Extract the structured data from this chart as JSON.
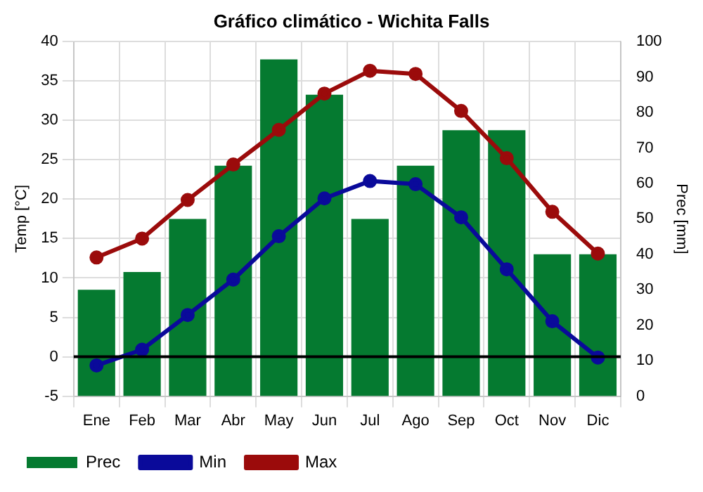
{
  "chart_data": {
    "type": "bar",
    "title": "Gráfico climático - Wichita Falls",
    "ylabel": "Temp [°C]",
    "y2label": "Prec [mm]",
    "categories": [
      "Ene",
      "Feb",
      "Mar",
      "Abr",
      "May",
      "Jun",
      "Jul",
      "Ago",
      "Sep",
      "Oct",
      "Nov",
      "Dic"
    ],
    "series": [
      {
        "name": "Prec",
        "axis": "y2",
        "color": "#057a30",
        "values": [
          30,
          35,
          50,
          65,
          95,
          85,
          50,
          65,
          75,
          75,
          40,
          40
        ]
      },
      {
        "name": "Min",
        "type": "line",
        "axis": "y",
        "color": "#0a0a9a",
        "values": [
          -1.1,
          0.9,
          5.3,
          9.8,
          15.3,
          20.1,
          22.3,
          21.9,
          17.7,
          11.1,
          4.5,
          -0.1
        ]
      },
      {
        "name": "Max",
        "type": "line",
        "axis": "y",
        "color": "#9b0b0b",
        "values": [
          12.6,
          15,
          19.9,
          24.4,
          28.8,
          33.4,
          36.3,
          35.9,
          31.2,
          25.2,
          18.4,
          13.1
        ]
      }
    ],
    "ylim": [
      -5,
      40
    ],
    "yticks": [
      -5,
      0,
      5,
      10,
      15,
      20,
      25,
      30,
      35,
      40
    ],
    "y2lim": [
      0,
      100
    ],
    "y2ticks": [
      0,
      10,
      20,
      30,
      40,
      50,
      60,
      70,
      80,
      90,
      100
    ],
    "ref_lines": [
      {
        "axis": "y",
        "value": 0,
        "color": "#000000"
      }
    ],
    "grid": true,
    "legend": "bottom",
    "marker": "circle",
    "line_style": "solid"
  }
}
